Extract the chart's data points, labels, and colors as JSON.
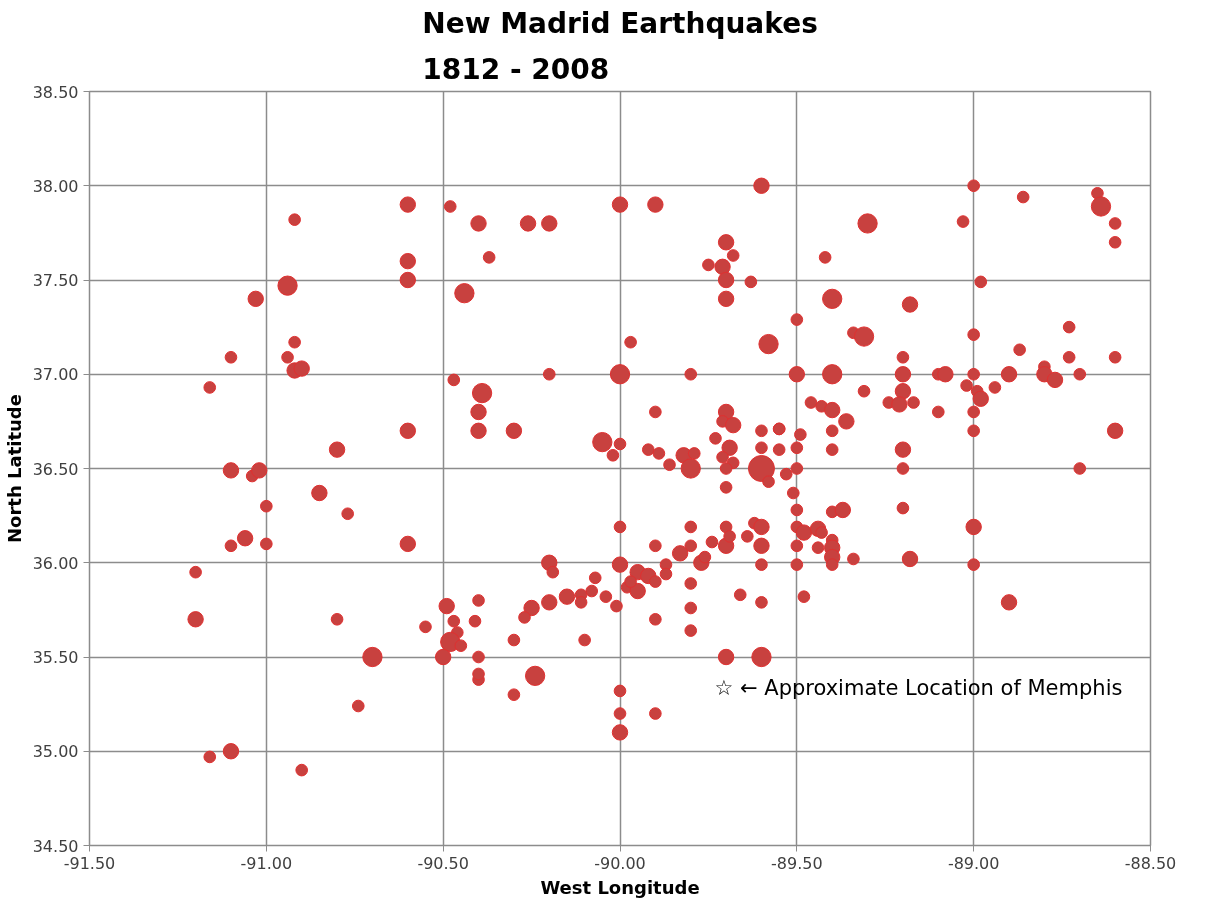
{
  "chart_data": {
    "type": "bubble",
    "title": "New Madrid Earthquakes\n1812 - 2008",
    "xlabel": "West Longitude",
    "ylabel": "North Latitude",
    "xlim": [
      -91.5,
      -88.5
    ],
    "ylim": [
      34.5,
      38.5
    ],
    "xticks": [
      {
        "value": -91.5,
        "label": "-91.50"
      },
      {
        "value": -91.0,
        "label": "-91.00"
      },
      {
        "value": -90.5,
        "label": "-90.50"
      },
      {
        "value": -90.0,
        "label": "-90.00"
      },
      {
        "value": -89.5,
        "label": "-89.50"
      },
      {
        "value": -89.0,
        "label": "-89.00"
      },
      {
        "value": -88.5,
        "label": "-88.50"
      }
    ],
    "yticks": [
      {
        "value": 34.5,
        "label": "34.50"
      },
      {
        "value": 35.0,
        "label": "35.00"
      },
      {
        "value": 35.5,
        "label": "35.50"
      },
      {
        "value": 36.0,
        "label": "36.00"
      },
      {
        "value": 36.5,
        "label": "36.50"
      },
      {
        "value": 37.0,
        "label": "37.00"
      },
      {
        "value": 37.5,
        "label": "37.50"
      },
      {
        "value": 38.0,
        "label": "38.00"
      },
      {
        "value": 38.5,
        "label": "38.50"
      }
    ],
    "grid": true,
    "annotations": [
      "☆  ← Approximate Location of Memphis"
    ],
    "series": [
      {
        "color": "#c8413f",
        "x": [
          -90.6,
          -90.92,
          -90.6,
          -90.6,
          -90.94,
          -91.03,
          -90.92,
          -91.1,
          -90.94,
          -90.92,
          -90.9,
          -91.16,
          -90.6,
          -90.8,
          -91.1,
          -91.04,
          -91.02,
          -90.85,
          -91.0,
          -90.77,
          -91.1,
          -91.06,
          -91.0,
          -90.6,
          -91.2,
          -91.2,
          -90.8,
          -90.7,
          -90.74,
          -91.16,
          -91.1,
          -90.9,
          -90.48,
          -90.4,
          -90.26,
          -90.2,
          -90.0,
          -89.9,
          -89.6,
          -90.37,
          -90.44,
          -89.7,
          -89.68,
          -89.75,
          -89.71,
          -89.7,
          -89.63,
          -89.7,
          -89.58,
          -89.97,
          -90.0,
          -90.2,
          -89.8,
          -90.47,
          -90.39,
          -90.4,
          -90.4,
          -90.3,
          -90.05,
          -90.0,
          -90.02,
          -89.9,
          -89.92,
          -89.89,
          -89.86,
          -89.82,
          -89.79,
          -89.8,
          -89.73,
          -89.7,
          -89.71,
          -89.68,
          -89.6,
          -89.55,
          -89.69,
          -89.71,
          -89.68,
          -89.7,
          -89.6,
          -89.6,
          -89.58,
          -89.7,
          -89.55,
          -89.0,
          -88.86,
          -88.65,
          -88.64,
          -88.6,
          -88.6,
          -89.03,
          -89.3,
          -89.42,
          -88.98,
          -89.4,
          -89.18,
          -89.5,
          -89.34,
          -89.31,
          -89.0,
          -88.73,
          -88.87,
          -88.73,
          -88.6,
          -89.2,
          -89.5,
          -89.4,
          -89.2,
          -89.1,
          -89.08,
          -89.0,
          -89.02,
          -88.99,
          -88.98,
          -88.94,
          -88.9,
          -88.8,
          -88.8,
          -88.77,
          -88.7,
          -89.31,
          -89.2,
          -89.24,
          -89.21,
          -89.17,
          -89.1,
          -89.0,
          -89.0,
          -88.6,
          -89.46,
          -89.43,
          -89.4,
          -89.36,
          -89.4,
          -89.4,
          -89.2,
          -89.2,
          -88.7,
          -89.55,
          -89.49,
          -89.5,
          -89.5,
          -89.53,
          -89.51,
          -89.5,
          -89.4,
          -89.37,
          -89.2,
          -89.5,
          -89.48,
          -89.44,
          -89.43,
          -89.44,
          -89.5,
          -89.4,
          -89.4,
          -89.4,
          -89.4,
          -89.34,
          -89.18,
          -89.5,
          -89.0,
          -89.0,
          -89.48,
          -88.9,
          -90.0,
          -89.8,
          -89.7,
          -89.62,
          -89.6,
          -89.9,
          -89.8,
          -89.74,
          -89.7,
          -89.69,
          -89.64,
          -89.6,
          -89.6,
          -90.0,
          -89.83,
          -89.77,
          -89.76,
          -89.87,
          -89.87,
          -89.95,
          -89.92,
          -89.9,
          -89.98,
          -89.95,
          -89.97,
          -89.8,
          -89.8,
          -89.8,
          -89.9,
          -89.66,
          -89.6,
          -89.7,
          -89.6,
          -90.2,
          -90.19,
          -90.07,
          -90.08,
          -90.11,
          -90.11,
          -90.04,
          -90.01,
          -90.15,
          -90.2,
          -90.25,
          -90.27,
          -90.3,
          -90.1,
          -90.4,
          -90.41,
          -90.49,
          -90.47,
          -90.55,
          -90.46,
          -90.48,
          -90.45,
          -90.5,
          -90.4,
          -90.4,
          -90.4,
          -90.24,
          -90.3,
          -90.0,
          -90.0,
          -90.0,
          -89.9
        ],
        "values": [
          37.9,
          37.82,
          37.6,
          37.5,
          37.47,
          37.4,
          37.17,
          37.09,
          37.09,
          37.02,
          37.03,
          36.93,
          36.7,
          36.6,
          36.49,
          36.46,
          36.49,
          36.37,
          36.3,
          36.26,
          36.09,
          36.13,
          36.1,
          36.1,
          35.95,
          35.7,
          35.7,
          35.5,
          35.24,
          34.97,
          35.0,
          34.9,
          37.89,
          37.8,
          37.8,
          37.8,
          37.9,
          37.9,
          38.0,
          37.62,
          37.43,
          37.7,
          37.63,
          37.58,
          37.57,
          37.5,
          37.49,
          37.4,
          37.16,
          37.17,
          37.0,
          37.0,
          37.0,
          36.97,
          36.9,
          36.8,
          36.7,
          36.7,
          36.64,
          36.63,
          36.57,
          36.8,
          36.6,
          36.58,
          36.52,
          36.57,
          36.58,
          36.5,
          36.66,
          36.8,
          36.75,
          36.73,
          36.7,
          36.71,
          36.61,
          36.56,
          36.53,
          36.5,
          36.61,
          36.5,
          36.43,
          36.4,
          36.6,
          38.0,
          37.94,
          37.96,
          37.89,
          37.8,
          37.7,
          37.81,
          37.8,
          37.62,
          37.49,
          37.4,
          37.37,
          37.29,
          37.22,
          37.2,
          37.21,
          37.25,
          37.13,
          37.09,
          37.09,
          37.09,
          37.0,
          37.0,
          37.0,
          37.0,
          37.0,
          37.0,
          36.94,
          36.91,
          36.87,
          36.93,
          37.0,
          37.04,
          37.0,
          36.97,
          37.0,
          36.91,
          36.91,
          36.85,
          36.84,
          36.85,
          36.8,
          36.8,
          36.7,
          36.7,
          36.85,
          36.83,
          36.81,
          36.75,
          36.7,
          36.6,
          36.6,
          36.5,
          36.5,
          36.71,
          36.68,
          36.61,
          36.5,
          36.47,
          36.37,
          36.28,
          36.27,
          36.28,
          36.29,
          36.19,
          36.16,
          36.18,
          36.16,
          36.08,
          36.09,
          36.12,
          36.08,
          36.03,
          35.99,
          36.02,
          36.02,
          35.99,
          36.19,
          35.99,
          35.82,
          35.79,
          36.19,
          36.19,
          36.19,
          36.21,
          36.19,
          36.09,
          36.09,
          36.11,
          36.09,
          36.14,
          36.14,
          36.09,
          35.99,
          35.99,
          36.05,
          36.0,
          36.03,
          35.99,
          35.94,
          35.95,
          35.93,
          35.9,
          35.87,
          35.85,
          35.9,
          35.89,
          35.76,
          35.64,
          35.7,
          35.83,
          35.79,
          35.5,
          35.5,
          36.0,
          35.95,
          35.92,
          35.85,
          35.83,
          35.79,
          35.82,
          35.77,
          35.82,
          35.79,
          35.76,
          35.71,
          35.59,
          35.59,
          35.8,
          35.69,
          35.77,
          35.69,
          35.66,
          35.63,
          35.58,
          35.56,
          35.5,
          35.5,
          35.38,
          35.41,
          35.4,
          35.3,
          35.32,
          35.2,
          35.1,
          35.2
        ],
        "sizes": [
          0.35,
          0.2,
          0.35,
          0.35,
          0.55,
          0.35,
          0.2,
          0.2,
          0.2,
          0.35,
          0.35,
          0.2,
          0.35,
          0.35,
          0.35,
          0.2,
          0.35,
          0.35,
          0.2,
          0.2,
          0.2,
          0.35,
          0.2,
          0.35,
          0.2,
          0.35,
          0.2,
          0.55,
          0.2,
          0.2,
          0.35,
          0.2,
          0.2,
          0.35,
          0.35,
          0.35,
          0.35,
          0.35,
          0.35,
          0.2,
          0.55,
          0.35,
          0.2,
          0.2,
          0.35,
          0.35,
          0.2,
          0.35,
          0.55,
          0.2,
          0.55,
          0.2,
          0.2,
          0.2,
          0.55,
          0.35,
          0.35,
          0.35,
          0.55,
          0.2,
          0.2,
          0.2,
          0.2,
          0.2,
          0.2,
          0.35,
          0.2,
          0.55,
          0.2,
          0.35,
          0.2,
          0.35,
          0.2,
          0.2,
          0.35,
          0.2,
          0.2,
          0.2,
          0.2,
          1,
          0.2,
          0.2,
          0.2,
          0.2,
          0.2,
          0.2,
          0.55,
          0.2,
          0.2,
          0.2,
          0.55,
          0.2,
          0.2,
          0.55,
          0.35,
          0.2,
          0.2,
          0.55,
          0.2,
          0.2,
          0.2,
          0.2,
          0.2,
          0.2,
          0.35,
          0.55,
          0.35,
          0.2,
          0.35,
          0.2,
          0.2,
          0.2,
          0.35,
          0.2,
          0.35,
          0.2,
          0.35,
          0.35,
          0.2,
          0.2,
          0.35,
          0.2,
          0.35,
          0.2,
          0.2,
          0.2,
          0.2,
          0.35,
          0.2,
          0.2,
          0.35,
          0.35,
          0.2,
          0.2,
          0.35,
          0.2,
          0.2,
          0.2,
          0.2,
          0.2,
          0.2,
          0.2,
          0.2,
          0.2,
          0.2,
          0.35,
          0.2,
          0.2,
          0.35,
          0.35,
          0.2,
          0.2,
          0.2,
          0.2,
          0.35,
          0.35,
          0.2,
          0.2,
          0.35,
          0.2,
          0.35,
          0.2,
          0.2,
          0.35,
          0.2,
          0.2,
          0.2,
          0.2,
          0.35,
          0.2,
          0.2,
          0.2,
          0.35,
          0.2,
          0.2,
          0.35,
          0.2,
          0.35,
          0.35,
          0.35,
          0.2,
          0.2,
          0.2,
          0.35,
          0.35,
          0.2,
          0.2,
          0.35,
          0.2,
          0.2,
          0.2,
          0.2,
          0.2,
          0.2,
          0.2,
          0.35,
          0.55,
          0.35,
          0.2,
          0.2,
          0.2,
          0.2,
          0.2,
          0.2,
          0.2,
          0.35,
          0.35,
          0.35,
          0.2,
          0.2,
          0.2,
          0.2,
          0.2,
          0.35,
          0.2,
          0.2,
          0.2,
          0.55,
          0.2,
          0.35,
          0.2,
          0.2,
          0.2,
          0.55,
          0.2,
          0.2,
          0.2,
          0.35,
          0.2
        ]
      }
    ]
  }
}
